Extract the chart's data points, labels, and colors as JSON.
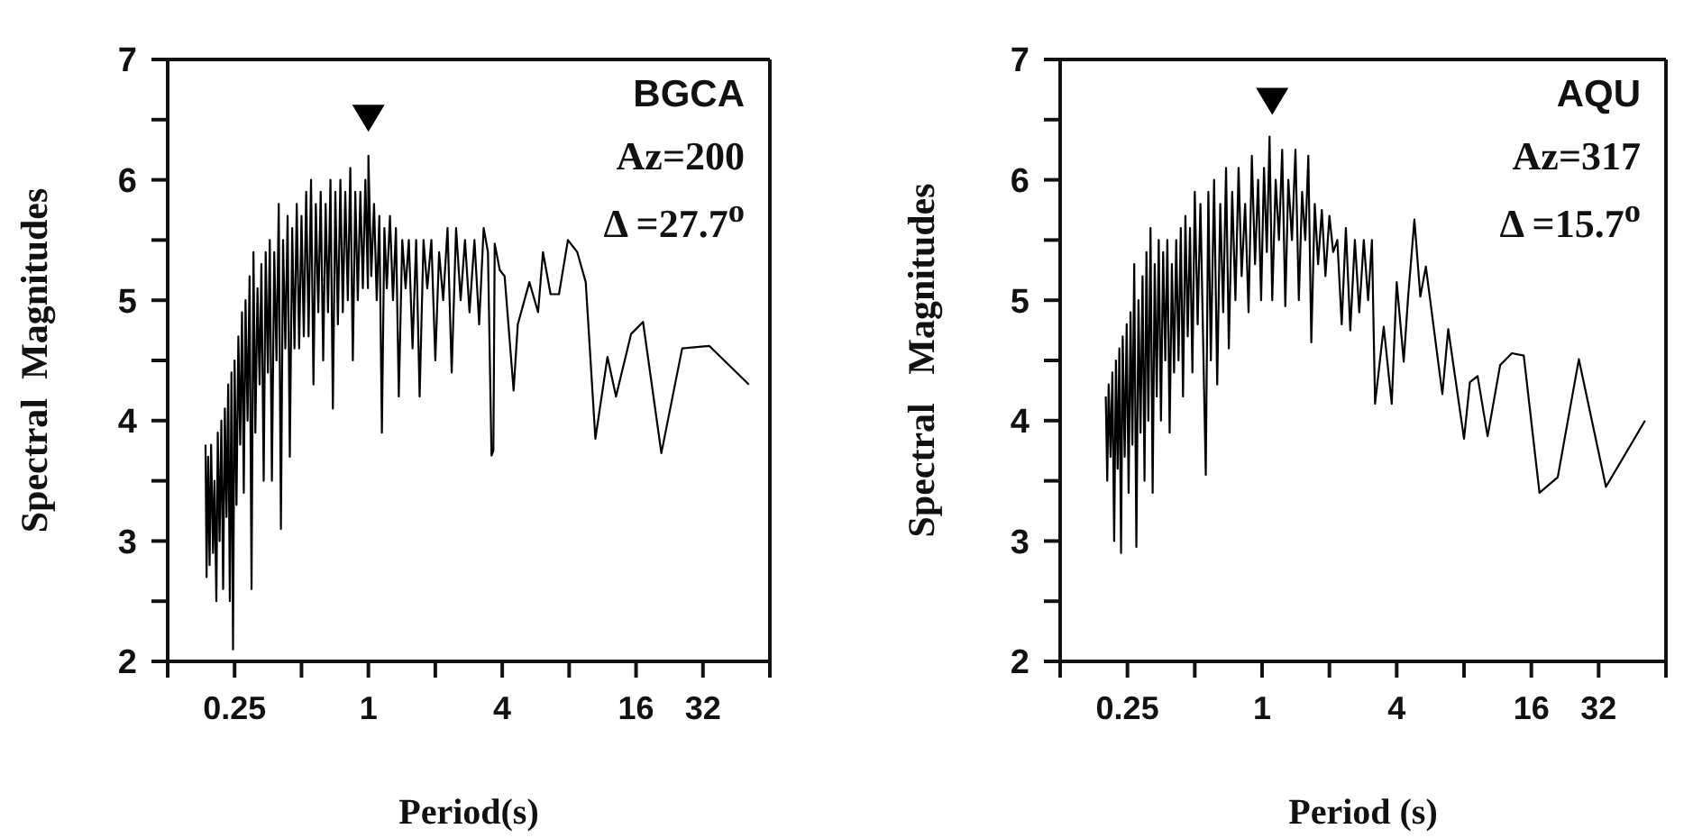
{
  "chart_data": [
    {
      "type": "line",
      "xlabel": "Period(s)",
      "ylabel": "Spectral  Magnitudes",
      "log": "x",
      "xlim": [
        0.125,
        64
      ],
      "xticks": [
        {
          "value": 0.125,
          "label": null
        },
        0.25,
        {
          "value": 0.5,
          "label": null
        },
        1,
        {
          "value": 2,
          "label": null
        },
        4,
        {
          "value": 8,
          "label": null
        },
        16,
        32,
        {
          "value": 64,
          "label": null
        }
      ],
      "ylim": [
        2,
        7
      ],
      "yticks": [
        2,
        {
          "value": 2.5,
          "label": null
        },
        3,
        {
          "value": 3.5,
          "label": null
        },
        4,
        {
          "value": 4.5,
          "label": null
        },
        5,
        {
          "value": 5.5,
          "label": null
        },
        6,
        {
          "value": 6.5,
          "label": null
        },
        7
      ],
      "annotations": [
        "BGCA",
        "Az=200",
        "Δ =27.7$^{o}$"
      ],
      "series": [
        {
          "color": "#000000",
          "x": [
            0.185,
            0.187,
            0.19,
            0.193,
            0.196,
            0.2,
            0.203,
            0.207,
            0.21,
            0.214,
            0.218,
            0.222,
            0.226,
            0.23,
            0.234,
            0.238,
            0.242,
            0.246,
            0.25,
            0.255,
            0.26,
            0.265,
            0.27,
            0.275,
            0.28,
            0.286,
            0.292,
            0.298,
            0.304,
            0.31,
            0.317,
            0.324,
            0.33,
            0.338,
            0.345,
            0.353,
            0.36,
            0.368,
            0.377,
            0.386,
            0.395,
            0.404,
            0.413,
            0.423,
            0.433,
            0.443,
            0.454,
            0.465,
            0.476,
            0.488,
            0.5,
            0.512,
            0.525,
            0.538,
            0.552,
            0.566,
            0.58,
            0.595,
            0.61,
            0.626,
            0.642,
            0.658,
            0.675,
            0.692,
            0.71,
            0.729,
            0.748,
            0.767,
            0.787,
            0.808,
            0.829,
            0.851,
            0.873,
            0.896,
            0.92,
            0.944,
            0.969,
            0.995,
            1.0,
            1.03,
            1.06,
            1.09,
            1.12,
            1.15,
            1.18,
            1.21,
            1.25,
            1.29,
            1.33,
            1.37,
            1.42,
            1.47,
            1.52,
            1.58,
            1.64,
            1.7,
            1.77,
            1.84,
            1.92,
            2.0,
            2.08,
            2.17,
            2.27,
            2.37,
            2.48,
            2.6,
            2.72,
            2.85,
            3.0,
            3.15,
            3.3,
            3.45,
            3.58,
            3.65,
            3.7,
            3.9,
            4.1,
            4.5,
            4.7,
            5.3,
            5.8,
            6.1,
            6.6,
            7.2,
            7.9,
            8.7,
            9.5,
            10.5,
            11.9,
            13.0,
            15.2,
            17.2,
            20.8,
            25.8,
            34.2,
            51.5
          ],
          "values": [
            3.8,
            2.7,
            3.7,
            2.8,
            3.8,
            2.9,
            3.5,
            2.5,
            3.9,
            3.0,
            4.0,
            2.6,
            4.1,
            3.2,
            4.3,
            2.5,
            4.4,
            2.1,
            4.5,
            3.3,
            4.7,
            3.8,
            4.9,
            3.4,
            5.0,
            4.0,
            5.2,
            2.6,
            5.4,
            3.9,
            5.1,
            4.3,
            5.3,
            3.5,
            5.4,
            4.4,
            5.5,
            3.5,
            5.4,
            4.5,
            5.8,
            3.1,
            5.5,
            4.6,
            5.7,
            3.7,
            5.6,
            4.6,
            5.8,
            4.6,
            5.7,
            4.7,
            5.9,
            4.7,
            6.0,
            4.3,
            5.8,
            4.9,
            5.9,
            4.5,
            5.8,
            4.9,
            6.0,
            4.1,
            5.9,
            4.8,
            6.0,
            4.9,
            5.9,
            5.0,
            6.1,
            4.5,
            5.9,
            5.0,
            5.9,
            5.1,
            6.0,
            5.1,
            6.2,
            5.2,
            5.8,
            5.0,
            5.7,
            3.9,
            5.6,
            5.1,
            5.7,
            5.0,
            5.6,
            4.2,
            5.5,
            5.1,
            5.5,
            4.6,
            5.5,
            4.2,
            5.5,
            5.1,
            5.5,
            4.5,
            5.4,
            5.0,
            5.6,
            4.4,
            5.6,
            5.0,
            5.5,
            4.9,
            5.5,
            4.8,
            5.6,
            5.4,
            3.71,
            3.75,
            5.47,
            5.25,
            5.2,
            4.25,
            4.8,
            5.15,
            4.9,
            5.4,
            5.05,
            5.05,
            5.5,
            5.4,
            5.15,
            3.85,
            4.53,
            4.2,
            4.72,
            4.82,
            3.73,
            4.6,
            4.62,
            4.3
          ]
        },
        {
          "type": "scatter",
          "marker": "triangle",
          "color": "#000000",
          "x": [
            1.0
          ],
          "values": [
            6.52
          ]
        }
      ]
    },
    {
      "type": "line",
      "xlabel": "Period (s)",
      "ylabel": "Spectral   Magnitudes",
      "log": "x",
      "xlim": [
        0.125,
        64
      ],
      "xticks": [
        {
          "value": 0.125,
          "label": null
        },
        0.25,
        {
          "value": 0.5,
          "label": null
        },
        1,
        {
          "value": 2,
          "label": null
        },
        4,
        {
          "value": 8,
          "label": null
        },
        16,
        32,
        {
          "value": 64,
          "label": null
        }
      ],
      "ylim": [
        2,
        7
      ],
      "yticks": [
        2,
        {
          "value": 2.5,
          "label": null
        },
        3,
        {
          "value": 3.5,
          "label": null
        },
        4,
        {
          "value": 4.5,
          "label": null
        },
        5,
        {
          "value": 5.5,
          "label": null
        },
        6,
        {
          "value": 6.5,
          "label": null
        },
        7
      ],
      "annotations": [
        "AQU",
        "Az=317",
        "Δ =15.7$^{o}$"
      ],
      "series": [
        {
          "color": "#000000",
          "x": [
            0.2,
            0.203,
            0.206,
            0.21,
            0.214,
            0.218,
            0.222,
            0.226,
            0.23,
            0.234,
            0.238,
            0.243,
            0.248,
            0.253,
            0.258,
            0.263,
            0.268,
            0.274,
            0.28,
            0.286,
            0.292,
            0.298,
            0.304,
            0.31,
            0.317,
            0.324,
            0.331,
            0.338,
            0.345,
            0.353,
            0.361,
            0.369,
            0.377,
            0.386,
            0.395,
            0.404,
            0.413,
            0.423,
            0.433,
            0.443,
            0.454,
            0.465,
            0.476,
            0.488,
            0.5,
            0.515,
            0.53,
            0.56,
            0.575,
            0.59,
            0.61,
            0.63,
            0.65,
            0.67,
            0.69,
            0.71,
            0.735,
            0.76,
            0.785,
            0.81,
            0.84,
            0.87,
            0.9,
            0.93,
            0.96,
            0.99,
            1.02,
            1.05,
            1.08,
            1.11,
            1.15,
            1.19,
            1.23,
            1.27,
            1.31,
            1.36,
            1.41,
            1.46,
            1.51,
            1.56,
            1.61,
            1.66,
            1.72,
            1.78,
            1.85,
            1.92,
            2.0,
            2.08,
            2.17,
            2.27,
            2.37,
            2.48,
            2.6,
            2.72,
            2.85,
            2.98,
            3.1,
            3.2,
            3.5,
            3.8,
            4.0,
            4.3,
            4.5,
            4.8,
            5.1,
            5.4,
            6.4,
            6.8,
            8.0,
            8.5,
            9.2,
            10.2,
            11.6,
            13.1,
            14.8,
            17.4,
            21.0,
            26.1,
            34.5,
            51.6
          ],
          "values": [
            4.2,
            3.5,
            4.3,
            3.7,
            4.4,
            3.0,
            4.5,
            3.6,
            4.6,
            2.9,
            4.7,
            3.7,
            4.8,
            3.4,
            4.9,
            3.8,
            5.3,
            2.95,
            5.0,
            3.9,
            5.2,
            3.5,
            5.4,
            4.0,
            5.6,
            3.4,
            5.3,
            4.2,
            5.5,
            4.0,
            5.4,
            4.5,
            5.5,
            3.9,
            5.3,
            4.4,
            5.5,
            4.5,
            5.6,
            4.2,
            5.7,
            4.7,
            5.6,
            4.4,
            5.9,
            4.8,
            5.8,
            3.55,
            5.9,
            4.5,
            6.0,
            4.3,
            5.8,
            4.9,
            6.1,
            4.6,
            5.9,
            5.0,
            6.1,
            5.2,
            5.8,
            4.9,
            6.2,
            5.3,
            6.0,
            5.0,
            6.1,
            5.4,
            6.36,
            5.0,
            6.0,
            5.5,
            6.25,
            4.95,
            6.0,
            5.5,
            6.25,
            5.0,
            5.9,
            5.5,
            6.2,
            4.65,
            5.8,
            5.3,
            5.75,
            5.2,
            5.7,
            5.4,
            5.5,
            4.8,
            5.6,
            4.75,
            5.5,
            4.9,
            5.5,
            5.0,
            5.5,
            4.14,
            4.78,
            4.14,
            5.15,
            4.49,
            5.03,
            5.67,
            5.03,
            5.28,
            4.22,
            4.76,
            3.85,
            4.32,
            4.37,
            3.87,
            4.46,
            4.56,
            4.54,
            3.4,
            3.53,
            4.51,
            3.45,
            4.0
          ]
        },
        {
          "type": "scatter",
          "marker": "triangle",
          "color": "#000000",
          "x": [
            1.11
          ],
          "values": [
            6.66
          ]
        }
      ]
    }
  ]
}
